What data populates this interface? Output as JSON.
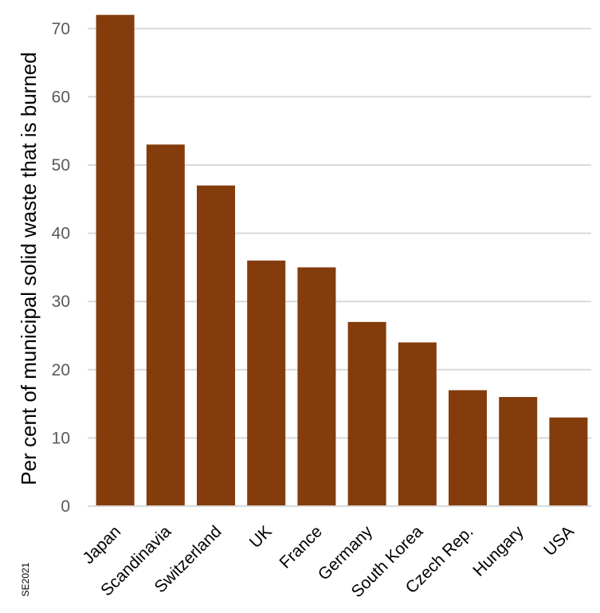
{
  "chart_data": {
    "type": "bar",
    "categories": [
      "Japan",
      "Scandinavia",
      "Switzerland",
      "UK",
      "France",
      "Germany",
      "South Korea",
      "Czech Rep.",
      "Hungary",
      "USA"
    ],
    "values": [
      72,
      53,
      47,
      36,
      35,
      27,
      24,
      17,
      16,
      13
    ],
    "title": "",
    "xlabel": "",
    "ylabel": "Per cent of municipal solid waste that is burned",
    "ylim": [
      0,
      70
    ],
    "yticks": [
      0,
      10,
      20,
      30,
      40,
      50,
      60,
      70
    ],
    "grid": true,
    "legend": "none",
    "bar_color": "#843C0C",
    "grid_color": "#D9D9D9",
    "credit": "SE2021"
  }
}
